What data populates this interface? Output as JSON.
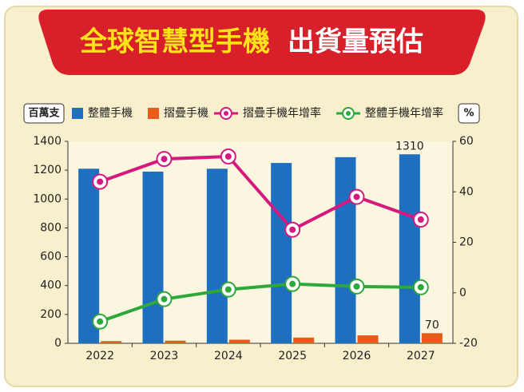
{
  "chart_data": {
    "type": "bar-line",
    "title_part1": "全球智慧型手機",
    "title_part2": "出貨量預估",
    "y_label": "百萬支",
    "y2_label": "%",
    "categories": [
      "2022",
      "2023",
      "2024",
      "2025",
      "2026",
      "2027"
    ],
    "series": [
      {
        "name": "整體手機",
        "type": "bar",
        "color": "#1f6fc0",
        "values": [
          1210,
          1190,
          1210,
          1250,
          1290,
          1310
        ]
      },
      {
        "name": "摺疊手機",
        "type": "bar",
        "color": "#ea5a1a",
        "values": [
          15,
          18,
          25,
          40,
          55,
          70
        ]
      },
      {
        "name": "摺疊手機年增率",
        "type": "line",
        "axis": "y2",
        "color": "#d6197e",
        "values": [
          44,
          53,
          54,
          25,
          38,
          29
        ]
      },
      {
        "name": "整體手機年增率",
        "type": "line",
        "axis": "y2",
        "color": "#2ea83a",
        "values": [
          -11.4,
          -2.5,
          1.3,
          3.5,
          2.5,
          2.2
        ]
      }
    ],
    "ylim": [
      0,
      1400
    ],
    "yticks": [
      0,
      200,
      400,
      600,
      800,
      1000,
      1200,
      1400
    ],
    "y2lim": [
      -20,
      60
    ],
    "y2ticks": [
      -20,
      0,
      20,
      40,
      60
    ]
  }
}
